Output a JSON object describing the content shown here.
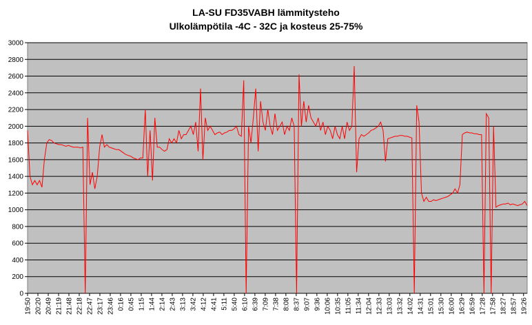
{
  "chart_data": {
    "type": "line",
    "title": "LA-SU FD35VABH lämmitysteho",
    "subtitle": "Ulkolämpötila  -4C - 32C ja kosteus 25-75%",
    "xlabel": "",
    "ylabel": "",
    "ylim": [
      0,
      3000
    ],
    "yticks": [
      0,
      200,
      400,
      600,
      800,
      1000,
      1200,
      1400,
      1600,
      1800,
      2000,
      2200,
      2400,
      2600,
      2800,
      3000
    ],
    "xticks": [
      "19:50",
      "20:20",
      "20:49",
      "21:19",
      "21:48",
      "22:18",
      "22:47",
      "23:17",
      "23:46",
      "0:16",
      "0:45",
      "1:15",
      "1:44",
      "2:14",
      "2:43",
      "3:13",
      "3:42",
      "4:12",
      "4:41",
      "5:11",
      "5:40",
      "6:10",
      "6:39",
      "7:09",
      "7:38",
      "8:08",
      "8:37",
      "9:07",
      "9:36",
      "10:06",
      "10:35",
      "11:05",
      "11:34",
      "12:04",
      "12:33",
      "13:03",
      "13:32",
      "14:02",
      "14:31",
      "15:01",
      "15:30",
      "16:00",
      "16:29",
      "16:59",
      "17:28",
      "17:58",
      "18:27",
      "18:57",
      "19:26"
    ],
    "grid": true,
    "series": [
      {
        "color": "#ff0000",
        "values": [
          1950,
          1400,
          1300,
          1350,
          1300,
          1350,
          1270,
          1600,
          1800,
          1840,
          1830,
          1800,
          1790,
          1780,
          1780,
          1770,
          1760,
          1770,
          1760,
          1750,
          1750,
          1750,
          1740,
          1750,
          0,
          2100,
          1300,
          1450,
          1250,
          1400,
          1750,
          1900,
          1750,
          1780,
          1750,
          1740,
          1730,
          1720,
          1720,
          1700,
          1680,
          1660,
          1650,
          1640,
          1620,
          1610,
          1600,
          1620,
          1620,
          2200,
          1400,
          1950,
          1350,
          2100,
          1750,
          1750,
          1720,
          1700,
          1720,
          1850,
          1800,
          1850,
          1800,
          1950,
          1850,
          1900,
          1900,
          1950,
          2000,
          1900,
          2050,
          1700,
          2450,
          1600,
          2100,
          1950,
          2000,
          1950,
          1900,
          1920,
          1930,
          1900,
          1920,
          1930,
          1950,
          1950,
          1970,
          2000,
          1900,
          1880,
          2550,
          0,
          2000,
          1800,
          2100,
          2450,
          1700,
          2300,
          2050,
          1950,
          2200,
          2000,
          1900,
          2150,
          1950,
          2000,
          2050,
          1900,
          2000,
          1950,
          2100,
          2000,
          0,
          2620,
          2000,
          2300,
          2050,
          2250,
          2100,
          2050,
          2000,
          2100,
          1950,
          2050,
          1900,
          2000,
          1950,
          1850,
          2000,
          1900,
          1850,
          2000,
          1850,
          2050,
          1950,
          2000,
          2720,
          1450,
          1850,
          1900,
          1880,
          1900,
          1920,
          1950,
          1960,
          1980,
          2000,
          2050,
          1950,
          1580,
          1850,
          1860,
          1870,
          1880,
          1880,
          1890,
          1890,
          1880,
          1880,
          1870,
          1860,
          0,
          2250,
          2050,
          1200,
          1100,
          1150,
          1100,
          1100,
          1120,
          1110,
          1120,
          1130,
          1140,
          1150,
          1160,
          1180,
          1200,
          1250,
          1200,
          1300,
          1900,
          1920,
          1930,
          1920,
          1920,
          1910,
          1910,
          1900,
          1900,
          0,
          2150,
          2100,
          0,
          2000,
          1030,
          1050,
          1060,
          1070,
          1070,
          1080,
          1060,
          1070,
          1060,
          1050,
          1060,
          1070,
          1100,
          1050
        ]
      }
    ]
  }
}
